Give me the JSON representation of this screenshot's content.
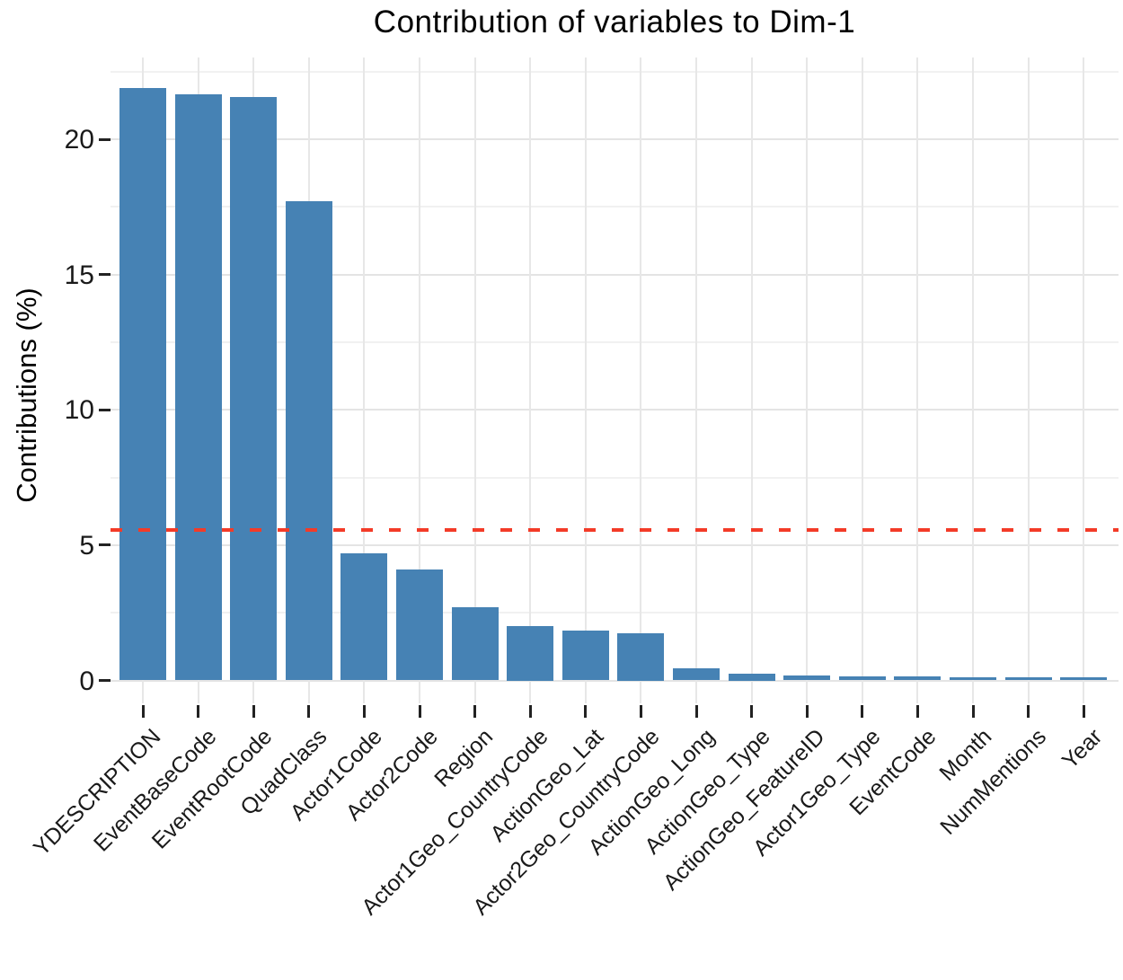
{
  "chart_data": {
    "type": "bar",
    "title": "Contribution of variables to Dim-1",
    "xlabel": "",
    "ylabel": "Contributions (%)",
    "categories": [
      "YDESCRIPTION",
      "EventBaseCode",
      "EventRootCode",
      "QuadClass",
      "Actor1Code",
      "Actor2Code",
      "Region",
      "Actor1Geo_CountryCode",
      "ActionGeo_Lat",
      "Actor2Geo_CountryCode",
      "ActionGeo_Long",
      "ActionGeo_Type",
      "ActionGeo_FeatureID",
      "Actor1Geo_Type",
      "EventCode",
      "Month",
      "NumMentions",
      "Year"
    ],
    "values": [
      21.9,
      21.65,
      21.55,
      17.7,
      4.7,
      4.1,
      2.7,
      2.0,
      1.85,
      1.75,
      0.45,
      0.25,
      0.18,
      0.15,
      0.15,
      0.13,
      0.13,
      0.12
    ],
    "reference_line": 5.56,
    "yticks": [
      0,
      5,
      10,
      15,
      20
    ],
    "y_minor_gridlines": [
      2.5,
      7.5,
      12.5,
      17.5,
      22.5
    ],
    "ylim": [
      -0.9,
      23.0
    ],
    "grid": true,
    "legend": "none",
    "bar_color": "#4682B4",
    "reference_line_color": "#f33b28",
    "x_label_rotation_deg": 45
  }
}
